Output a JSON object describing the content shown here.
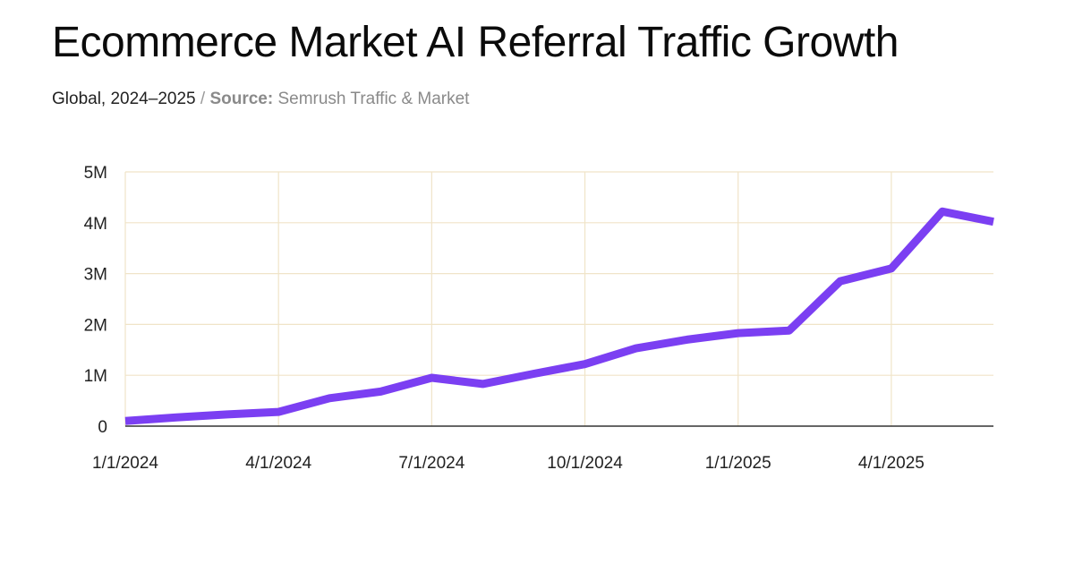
{
  "chart_data": {
    "type": "line",
    "title": "Ecommerce Market AI Referral Traffic Growth",
    "subtitle": {
      "region_period": "Global, 2024–2025",
      "separator": "/",
      "source_label": "Source:",
      "source_value": "Semrush Traffic & Market"
    },
    "xlabel": "",
    "ylabel": "",
    "ylim": [
      0,
      5000000
    ],
    "grid": true,
    "y_ticks": [
      {
        "value": 0,
        "label": "0"
      },
      {
        "value": 1000000,
        "label": "1M"
      },
      {
        "value": 2000000,
        "label": "2M"
      },
      {
        "value": 3000000,
        "label": "3M"
      },
      {
        "value": 4000000,
        "label": "4M"
      },
      {
        "value": 5000000,
        "label": "5M"
      }
    ],
    "x_ticks": [
      {
        "index": 0,
        "label": "1/1/2024"
      },
      {
        "index": 3,
        "label": "4/1/2024"
      },
      {
        "index": 6,
        "label": "7/1/2024"
      },
      {
        "index": 9,
        "label": "10/1/2024"
      },
      {
        "index": 12,
        "label": "1/1/2025"
      },
      {
        "index": 15,
        "label": "4/1/2025"
      }
    ],
    "x_range": [
      0,
      17
    ],
    "series": [
      {
        "name": "AI Referral Traffic",
        "color": "#7b3ff2",
        "x": [
          "1/1/2024",
          "2/1/2024",
          "3/1/2024",
          "4/1/2024",
          "5/1/2024",
          "6/1/2024",
          "7/1/2024",
          "8/1/2024",
          "9/1/2024",
          "10/1/2024",
          "11/1/2024",
          "12/1/2024",
          "1/1/2025",
          "2/1/2025",
          "3/1/2025",
          "4/1/2025",
          "5/1/2025",
          "6/1/2025"
        ],
        "values": [
          100000,
          170000,
          230000,
          280000,
          550000,
          680000,
          950000,
          830000,
          1030000,
          1220000,
          1530000,
          1700000,
          1830000,
          1880000,
          2850000,
          3100000,
          4220000,
          4020000
        ]
      }
    ]
  },
  "colors": {
    "line": "#7b3ff2",
    "grid": "#f0e4c8",
    "axis": "#333333"
  }
}
